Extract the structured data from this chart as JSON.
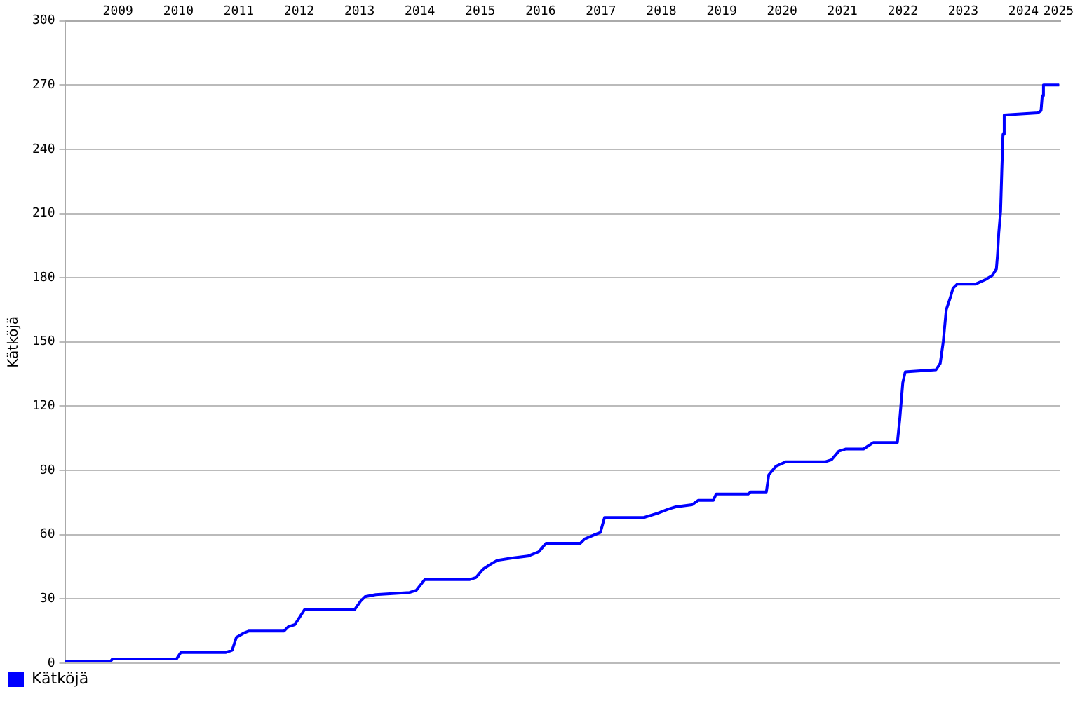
{
  "chart_data": {
    "type": "line",
    "ylabel": "Kätköjä",
    "x": [
      2008.62,
      2009.38,
      2009.41,
      2010.47,
      2010.54,
      2011.28,
      2011.39,
      2011.46,
      2011.58,
      2011.67,
      2012.25,
      2012.32,
      2012.43,
      2012.59,
      2013.42,
      2013.52,
      2013.59,
      2013.77,
      2014.33,
      2014.44,
      2014.58,
      2015.32,
      2015.43,
      2015.55,
      2015.66,
      2015.78,
      2016.01,
      2016.29,
      2016.47,
      2016.59,
      2017.16,
      2017.23,
      2017.4,
      2017.49,
      2017.56,
      2018.21,
      2018.44,
      2018.62,
      2018.74,
      2019.01,
      2019.11,
      2019.36,
      2019.41,
      2019.94,
      2019.98,
      2020.24,
      2020.28,
      2020.4,
      2020.56,
      2021.21,
      2021.32,
      2021.44,
      2021.55,
      2021.85,
      2022.01,
      2022.41,
      2022.45,
      2022.5,
      2022.54,
      2023.05,
      2023.12,
      2023.17,
      2023.22,
      2023.29,
      2023.33,
      2023.4,
      2023.7,
      2023.86,
      2023.98,
      2024.05,
      2024.07,
      2024.09,
      2024.12,
      2024.14,
      2024.16,
      2024.18,
      2024.74,
      2024.79,
      2024.81,
      2024.83,
      2025.09
    ],
    "series": [
      {
        "name": "Kätköjä",
        "color": "#0000ff",
        "values": [
          1,
          1,
          2,
          2,
          5,
          5,
          6,
          12,
          14,
          15,
          15,
          17,
          18,
          25,
          25,
          29,
          31,
          32,
          33,
          34,
          39,
          39,
          40,
          44,
          46,
          48,
          49,
          50,
          52,
          56,
          56,
          58,
          60,
          61,
          68,
          68,
          70,
          72,
          73,
          74,
          76,
          76,
          79,
          79,
          80,
          80,
          88,
          92,
          94,
          94,
          95,
          99,
          100,
          100,
          103,
          103,
          114,
          131,
          136,
          137,
          140,
          150,
          165,
          171,
          175,
          177,
          177,
          179,
          181,
          184,
          191,
          201,
          211,
          230,
          247,
          256,
          257,
          258,
          265,
          270,
          270
        ]
      }
    ],
    "xlim": [
      2008.62,
      2025.11
    ],
    "xticks": [
      {
        "value": 2009.5,
        "label": "2009"
      },
      {
        "value": 2010.5,
        "label": "2010"
      },
      {
        "value": 2011.5,
        "label": "2011"
      },
      {
        "value": 2012.5,
        "label": "2012"
      },
      {
        "value": 2013.5,
        "label": "2013"
      },
      {
        "value": 2014.5,
        "label": "2014"
      },
      {
        "value": 2015.5,
        "label": "2015"
      },
      {
        "value": 2016.5,
        "label": "2016"
      },
      {
        "value": 2017.5,
        "label": "2017"
      },
      {
        "value": 2018.5,
        "label": "2018"
      },
      {
        "value": 2019.5,
        "label": "2019"
      },
      {
        "value": 2020.5,
        "label": "2020"
      },
      {
        "value": 2021.5,
        "label": "2021"
      },
      {
        "value": 2022.5,
        "label": "2022"
      },
      {
        "value": 2023.5,
        "label": "2023"
      },
      {
        "value": 2024.5,
        "label": "2024"
      },
      {
        "value": 2025.08,
        "label": "2025"
      }
    ],
    "ylim": [
      0,
      300
    ],
    "yticks": [
      0,
      30,
      60,
      90,
      120,
      150,
      180,
      210,
      240,
      270,
      300
    ],
    "grid": "y",
    "legend": "bottom left",
    "marker": "none",
    "line_style": "solid"
  }
}
